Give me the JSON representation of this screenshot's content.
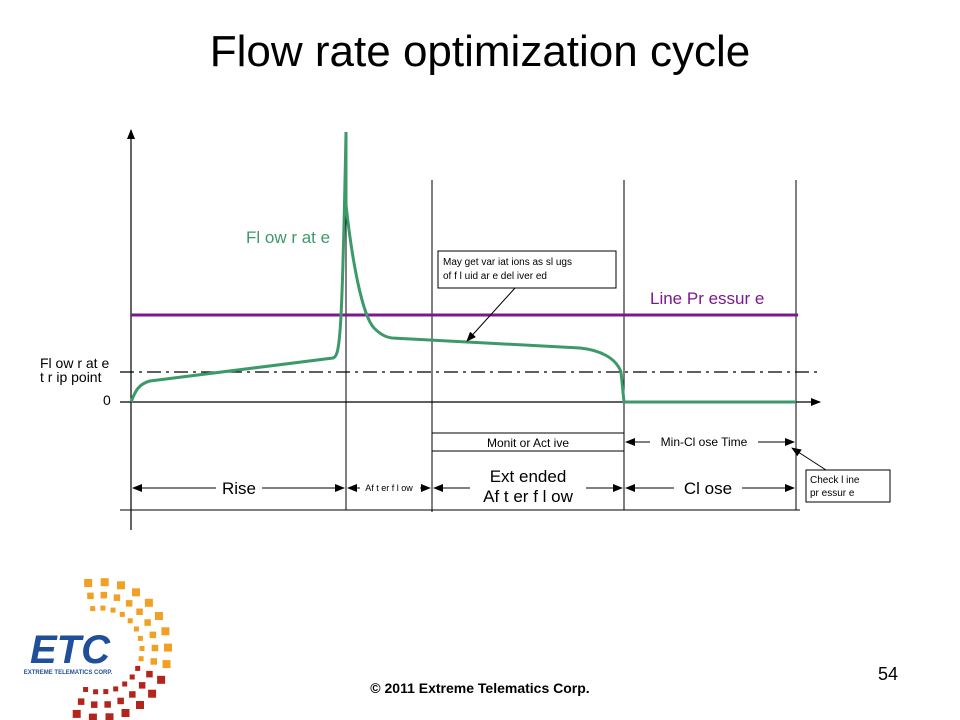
{
  "slide": {
    "title": "Flow rate optimization cycle",
    "footer": "© 2011 Extreme Telematics Corp.",
    "page_number": "54"
  },
  "diagram": {
    "flow_rate_label": "Fl ow r at e",
    "line_pressure_label": "Line Pr essur e",
    "trip_point_label": [
      "Fl ow r at e",
      "t r ip point"
    ],
    "zero_label": "0",
    "callout_slugs": [
      "May get var iat ions as sl ugs",
      "of f l uid ar e del iver ed"
    ],
    "callout_check": [
      "Check l ine",
      "pr essur e"
    ],
    "monitor_active": "Monit or Act ive",
    "min_close_time": "Min-Cl ose Time",
    "phases": {
      "rise": "Rise",
      "afterflow": "Af t er f l ow",
      "extended": [
        "Ext ended",
        "Af t er f l ow"
      ],
      "close": "Cl ose"
    },
    "colors": {
      "flow_rate": "#3c9a6a",
      "line_pressure": "#7a1a8c",
      "axes": "#000000"
    }
  },
  "logo": {
    "mark": "ETC",
    "tagline": "EXTREME TELEMATICS CORP.",
    "colors": {
      "mark": "#1f4e9a",
      "dots_dark": "#b3241c",
      "dots_light": "#f1a024"
    }
  }
}
